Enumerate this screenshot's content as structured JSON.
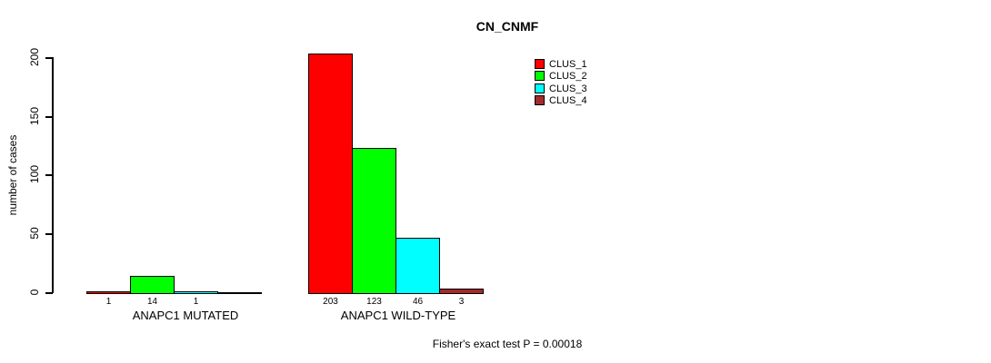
{
  "chart_data": {
    "type": "bar",
    "title": "CN_CNMF",
    "ylabel": "number of cases",
    "xlabel": "",
    "categories": [
      "ANAPC1 MUTATED",
      "ANAPC1 WILD-TYPE"
    ],
    "series": [
      {
        "name": "CLUS_1",
        "color": "#FF0000",
        "values": [
          1,
          203
        ]
      },
      {
        "name": "CLUS_2",
        "color": "#00FF00",
        "values": [
          14,
          123
        ]
      },
      {
        "name": "CLUS_3",
        "color": "#00FFFF",
        "values": [
          1,
          46
        ]
      },
      {
        "name": "CLUS_4",
        "color": "#A52A2A",
        "values": [
          0,
          3
        ]
      }
    ],
    "value_labels": {
      "show": true,
      "hide_zero": true,
      "labels": [
        [
          "1",
          "14",
          "1",
          ""
        ],
        [
          "203",
          "123",
          "46",
          "3"
        ]
      ]
    },
    "yticks": [
      0,
      50,
      100,
      150,
      200
    ],
    "ylim": [
      0,
      200
    ],
    "grid": false,
    "legend_position": "top-right",
    "legend": [
      "CLUS_1",
      "CLUS_2",
      "CLUS_3",
      "CLUS_4"
    ],
    "annotation": "Fisher's exact test P = 0.00018",
    "background": "#FFFFFF",
    "axis_color": "#000000"
  }
}
